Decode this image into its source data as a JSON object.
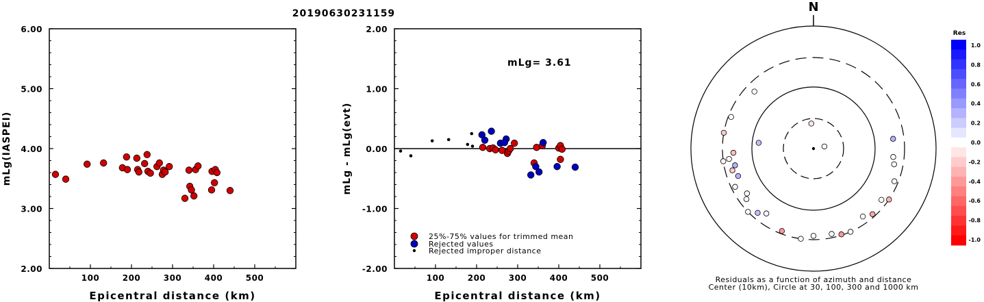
{
  "title": "20190630231159",
  "chart_data": [
    {
      "type": "scatter",
      "ylabel": "mLg(IASPEI)",
      "xlabel": "Epicentral distance (km)",
      "xlim": [
        0,
        600
      ],
      "ylim": [
        2.0,
        6.0
      ],
      "x_ticks": [
        "100",
        "200",
        "300",
        "400",
        "500"
      ],
      "y_ticks": [
        "6.00",
        "5.00",
        "4.00",
        "3.00",
        "2.00"
      ],
      "series": [
        {
          "color": "#d00000",
          "x": [
            15,
            40,
            92,
            132,
            178,
            188,
            190,
            213,
            215,
            218,
            232,
            238,
            240,
            246,
            262,
            268,
            275,
            278,
            282,
            292,
            330,
            340,
            342,
            346,
            352,
            356,
            362,
            395,
            396,
            402,
            404,
            408,
            440
          ],
          "y": [
            3.57,
            3.49,
            3.74,
            3.76,
            3.68,
            3.86,
            3.65,
            3.84,
            3.65,
            3.61,
            3.75,
            3.9,
            3.62,
            3.59,
            3.7,
            3.76,
            3.57,
            3.64,
            3.61,
            3.7,
            3.17,
            3.64,
            3.37,
            3.31,
            3.21,
            3.65,
            3.71,
            3.31,
            3.62,
            3.43,
            3.65,
            3.6,
            3.3
          ]
        }
      ]
    },
    {
      "type": "scatter",
      "ylabel": "mLg - mLg(evt)",
      "xlabel": "Epicentral distance (km)",
      "xlim": [
        0,
        600
      ],
      "ylim": [
        -2.0,
        2.0
      ],
      "x_ticks": [
        "100",
        "200",
        "300",
        "400",
        "500"
      ],
      "y_ticks": [
        "2.00",
        "1.00",
        "0.00",
        "-1.00",
        "-2.00"
      ],
      "annotation": "mLg= 3.61",
      "reference_line": 0.0,
      "legend": {
        "placement": "bottom-left",
        "entries": [
          "25%-75% values for trimmed mean",
          "Rejected values",
          "Rejected improper distance"
        ]
      },
      "series": [
        {
          "name": "25%-75% values for trimmed mean",
          "color": "#d00000",
          "marker": "large",
          "x": [
            215,
            232,
            240,
            246,
            262,
            275,
            278,
            282,
            292,
            340,
            346,
            360,
            400,
            404,
            408,
            404
          ],
          "y": [
            0.02,
            0.0,
            0.01,
            -0.02,
            -0.03,
            -0.08,
            -0.04,
            0.0,
            0.09,
            -0.24,
            0.02,
            0.05,
            0.01,
            0.05,
            -0.01,
            -0.18
          ]
        },
        {
          "name": "Rejected values",
          "color": "#0000c0",
          "marker": "large",
          "x": [
            213,
            220,
            236,
            258,
            272,
            268,
            332,
            344,
            352,
            362,
            396,
            440
          ],
          "y": [
            0.23,
            0.14,
            0.29,
            0.09,
            0.16,
            0.1,
            -0.44,
            -0.3,
            -0.39,
            0.1,
            -0.3,
            -0.31
          ]
        },
        {
          "name": "Rejected improper distance",
          "color": "#000000",
          "marker": "small",
          "x": [
            15,
            40,
            92,
            132,
            178,
            188,
            190
          ],
          "y": [
            -0.04,
            -0.12,
            0.13,
            0.15,
            0.07,
            0.25,
            0.04
          ]
        }
      ]
    },
    {
      "type": "polar",
      "north_label": "N",
      "caption_line1": "Residuals as a function of azimuth and distance",
      "caption_line2": "Center (10km), Circle at 30, 100, 300 and 1000 km",
      "rings_km": [
        30,
        100,
        300,
        1000
      ],
      "colorbar": {
        "title": "Res",
        "ticks": [
          "1.0",
          "0.8",
          "0.6",
          "0.4",
          "0.2",
          "0.0",
          "-0.2",
          "-0.4",
          "-0.6",
          "-0.8",
          "-1.0"
        ],
        "scale": [
          1.0,
          0.9,
          0.8,
          0.7,
          0.6,
          0.5,
          0.4,
          0.3,
          0.2,
          0.1,
          0.0,
          -0.1,
          -0.2,
          -0.3,
          -0.4,
          -0.5,
          -0.6,
          -0.7,
          -0.8,
          -0.9,
          -1.0
        ]
      },
      "stations": [
        {
          "az": 79,
          "dist_km": 15,
          "res": 0.01
        },
        {
          "az": 355,
          "dist_km": 25,
          "res": -0.1
        },
        {
          "az": 276,
          "dist_km": 78,
          "res": 0.25
        },
        {
          "az": 101,
          "dist_km": 215,
          "res": 0.02
        },
        {
          "az": 127,
          "dist_km": 240,
          "res": 0.01
        },
        {
          "az": 83,
          "dist_km": 200,
          "res": 0.3
        },
        {
          "az": 112,
          "dist_km": 260,
          "res": -0.01
        },
        {
          "az": 124,
          "dist_km": 300,
          "res": -0.3
        },
        {
          "az": 144,
          "dist_km": 230,
          "res": 0.03
        },
        {
          "az": 156,
          "dist_km": 300,
          "res": -0.01
        },
        {
          "az": 168,
          "dist_km": 260,
          "res": 0.02
        },
        {
          "az": 180,
          "dist_km": 260,
          "res": -0.01
        },
        {
          "az": 188,
          "dist_km": 300,
          "res": 0.03
        },
        {
          "az": 201,
          "dist_km": 270,
          "res": -0.4
        },
        {
          "az": 216,
          "dist_km": 200,
          "res": 0.04
        },
        {
          "az": 221,
          "dist_km": 240,
          "res": 0.25
        },
        {
          "az": 226,
          "dist_km": 300,
          "res": 0.01
        },
        {
          "az": 233,
          "dist_km": 230,
          "res": 0.02
        },
        {
          "az": 236,
          "dist_km": 200,
          "res": 0.01
        },
        {
          "az": 244,
          "dist_km": 260,
          "res": 0.03
        },
        {
          "az": 250,
          "dist_km": 200,
          "res": 0.3
        },
        {
          "az": 255,
          "dist_km": 230,
          "res": -0.2
        },
        {
          "az": 258,
          "dist_km": 200,
          "res": 0.3
        },
        {
          "az": 262,
          "dist_km": 300,
          "res": -0.05
        },
        {
          "az": 263,
          "dist_km": 240,
          "res": 0.01
        },
        {
          "az": 267,
          "dist_km": 200,
          "res": -0.25
        },
        {
          "az": 280,
          "dist_km": 300,
          "res": -0.2
        },
        {
          "az": 291,
          "dist_km": 270,
          "res": 0.02
        },
        {
          "az": 314,
          "dist_km": 215,
          "res": 0.02
        },
        {
          "az": 138,
          "dist_km": 270,
          "res": -0.35
        },
        {
          "az": 162,
          "dist_km": 290,
          "res": -0.4
        },
        {
          "az": 96,
          "dist_km": 200,
          "res": 0.0
        }
      ]
    }
  ]
}
